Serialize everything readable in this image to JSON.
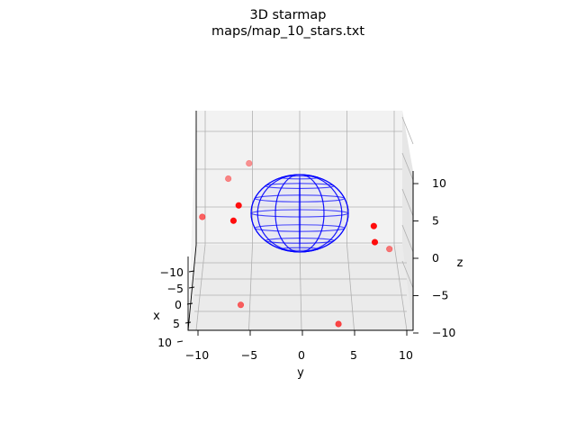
{
  "chart_data": {
    "type": "scatter",
    "projection": "3d",
    "title": "3D starmap",
    "subtitle": "maps/map_10_stars.txt",
    "xlabel": "x",
    "ylabel": "y",
    "zlabel": "z",
    "grid": true,
    "x_ticks": [
      "−10",
      "−5",
      "0",
      "5",
      "10"
    ],
    "y_ticks": [
      "−10",
      "−5",
      "0",
      "5",
      "10"
    ],
    "z_ticks": [
      "−10",
      "−5",
      "0",
      "5",
      "10"
    ],
    "xlim": [
      -10,
      10
    ],
    "ylim": [
      -10,
      10
    ],
    "zlim": [
      -10,
      10
    ],
    "sphere": {
      "center": [
        0,
        0,
        0
      ],
      "radius": 4.5,
      "color": "#0000ff"
    },
    "series": [
      {
        "color": "#ff0000",
        "points": [
          {
            "y": -9.5,
            "z": 6.0,
            "alpha": 0.6
          },
          {
            "y": -7.0,
            "z": 11.0,
            "alpha": 0.45
          },
          {
            "y": -5.0,
            "z": 13.0,
            "alpha": 0.4
          },
          {
            "y": -6.0,
            "z": 7.5,
            "alpha": 0.95
          },
          {
            "y": -6.5,
            "z": 5.5,
            "alpha": 0.95
          },
          {
            "y": 7.0,
            "z": 4.8,
            "alpha": 0.95
          },
          {
            "y": 7.1,
            "z": 2.7,
            "alpha": 0.95
          },
          {
            "y": 8.5,
            "z": 1.8,
            "alpha": 0.5
          },
          {
            "y": -5.8,
            "z": -5.5,
            "alpha": 0.6
          },
          {
            "y": 3.6,
            "z": -8.0,
            "alpha": 0.7
          }
        ]
      }
    ]
  }
}
